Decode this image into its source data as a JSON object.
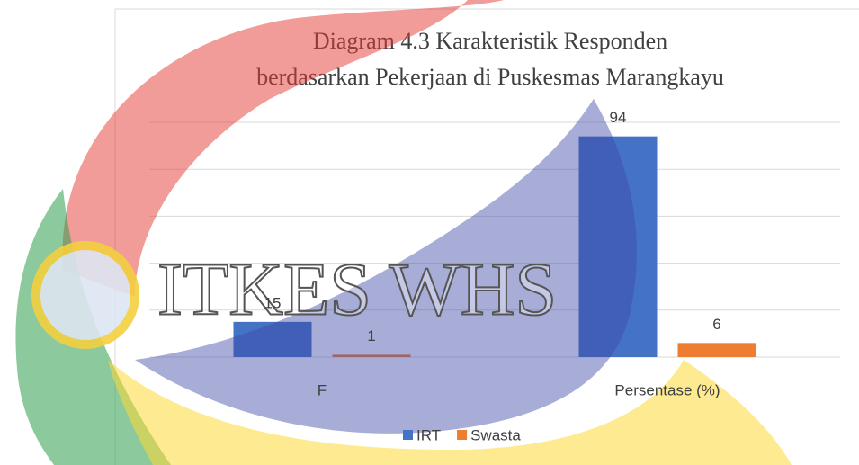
{
  "chart_data": {
    "type": "bar",
    "title": [
      "Diagram 4.3 Karakteristik Responden",
      "berdasarkan Pekerjaan di Puskesmas Marangkayu"
    ],
    "categories": [
      "F",
      "Persentase (%)"
    ],
    "series": [
      {
        "name": "IRT",
        "color": "#4472c4",
        "values": [
          15,
          94
        ]
      },
      {
        "name": "Swasta",
        "color": "#ed7d31",
        "values": [
          1,
          6
        ]
      }
    ],
    "ylim": [
      0,
      100
    ],
    "yticks": [
      0,
      20,
      40,
      60,
      80,
      100
    ],
    "grid": true,
    "legend": "bottom",
    "watermark": "ITKES WHS"
  }
}
